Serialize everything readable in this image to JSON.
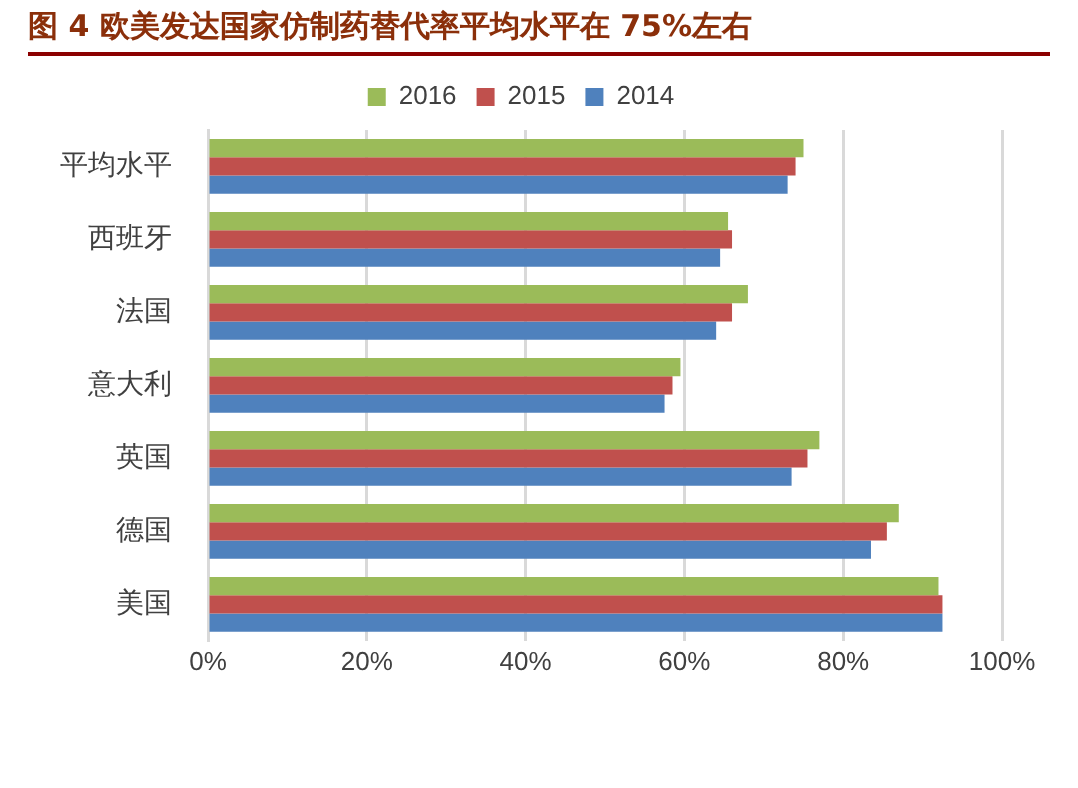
{
  "chart_data": {
    "type": "bar",
    "orientation": "horizontal",
    "title": "图 4  欧美发达国家仿制药替代率平均水平在 75%左右",
    "categories": [
      "平均水平",
      "西班牙",
      "法国",
      "意大利",
      "英国",
      "德国",
      "美国"
    ],
    "series": [
      {
        "name": "2016",
        "color": "#9bbb59",
        "values": [
          75,
          65.5,
          68,
          59.5,
          77,
          87,
          92
        ]
      },
      {
        "name": "2015",
        "color": "#c0504d",
        "values": [
          74,
          66,
          66,
          58.5,
          75.5,
          85.5,
          92.5
        ]
      },
      {
        "name": "2014",
        "color": "#4f81bd",
        "values": [
          73,
          64.5,
          64,
          57.5,
          73.5,
          83.5,
          92.5
        ]
      }
    ],
    "xlim": [
      0,
      100
    ],
    "xticks": [
      {
        "value": 0,
        "label": "0%"
      },
      {
        "value": 20,
        "label": "20%"
      },
      {
        "value": 40,
        "label": "40%"
      },
      {
        "value": 60,
        "label": "60%"
      },
      {
        "value": 80,
        "label": "80%"
      },
      {
        "value": 100,
        "label": "100%"
      }
    ],
    "grid": "x",
    "legend": "top"
  }
}
